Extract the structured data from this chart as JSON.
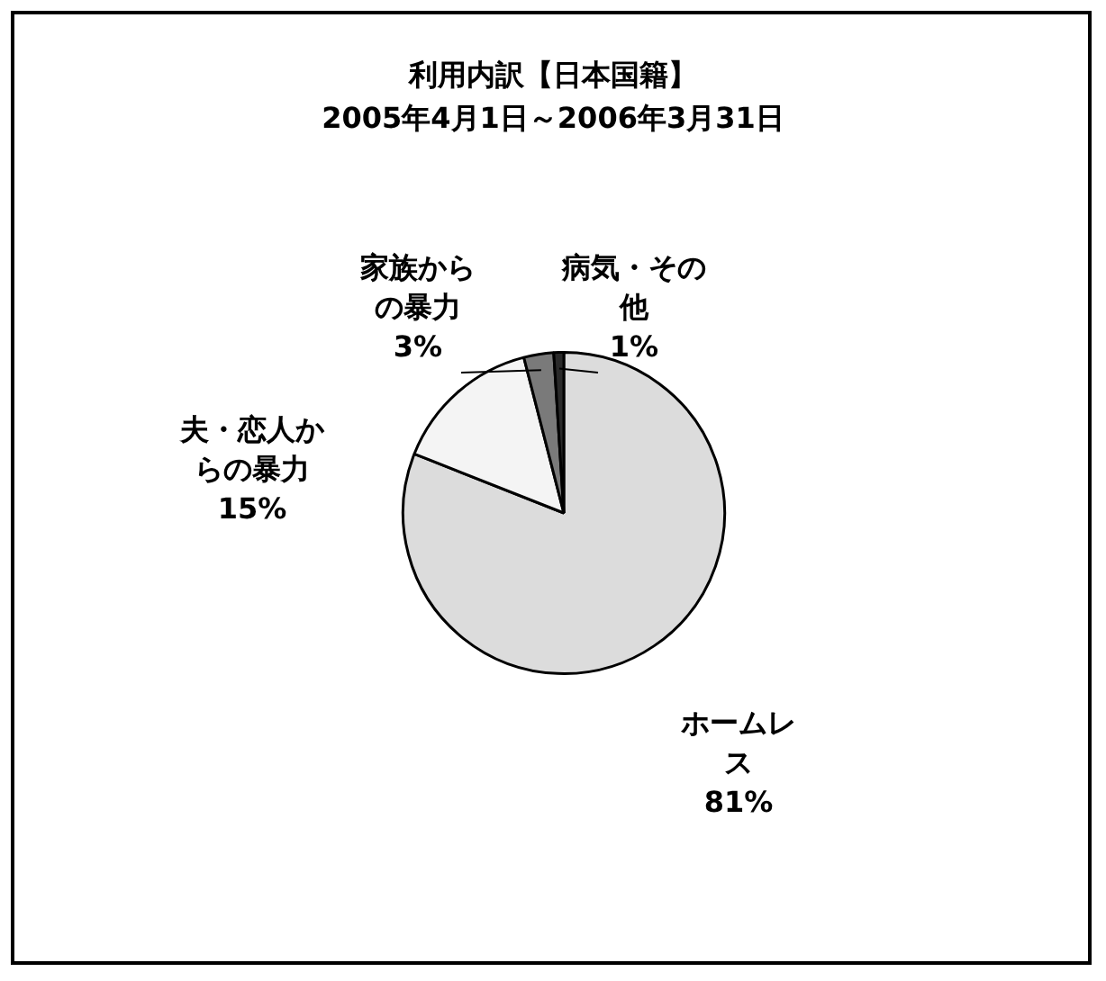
{
  "chart_data": {
    "type": "pie",
    "title": "利用内訳【日本国籍】",
    "subtitle": "2005年4月1日～2006年3月31日",
    "categories": [
      "ホームレス",
      "夫・恋人からの暴力",
      "家族からの暴力",
      "病気・その他"
    ],
    "values": [
      81,
      15,
      3,
      1
    ],
    "value_labels": [
      "81%",
      "15%",
      "3%",
      "1%"
    ],
    "colors": [
      "#dcdcdc",
      "#f4f4f4",
      "#7a7a7a",
      "#2a2a2a"
    ],
    "legend": false
  }
}
